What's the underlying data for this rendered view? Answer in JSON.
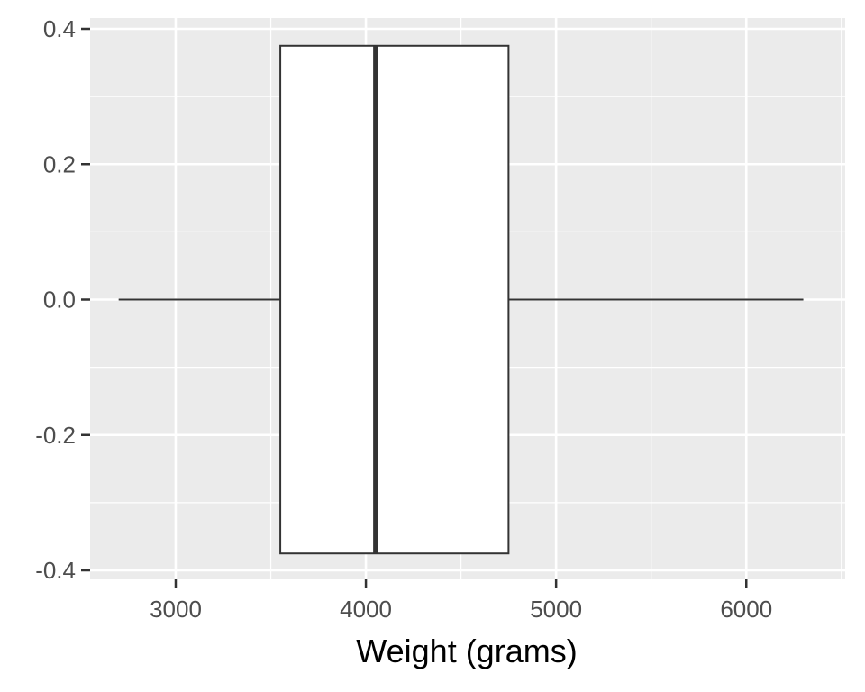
{
  "chart_data": {
    "type": "boxplot",
    "title": "",
    "xlabel": "Weight (grams)",
    "ylabel": "",
    "xlim": [
      2550,
      6520
    ],
    "ylim": [
      -0.4,
      0.4
    ],
    "x_ticks": [
      3000,
      4000,
      5000,
      6000
    ],
    "x_tick_labels": [
      "3000",
      "4000",
      "5000",
      "6000"
    ],
    "y_ticks": [
      0.4,
      0.2,
      0.0,
      -0.2,
      -0.4
    ],
    "y_tick_labels": [
      "0.4",
      "0.2",
      "0.0",
      "-0.2",
      "-0.4"
    ],
    "box": {
      "min": 2700,
      "q1": 3550,
      "median": 4050,
      "q3": 4750,
      "max": 6300,
      "y_center": 0.0,
      "half_width": 0.375
    },
    "grid": true,
    "colors": {
      "panel": "#ebebeb",
      "grid": "#ffffff",
      "box_fill": "#ffffff",
      "box_stroke": "#333333",
      "tick_text": "#4d4d4d"
    }
  }
}
